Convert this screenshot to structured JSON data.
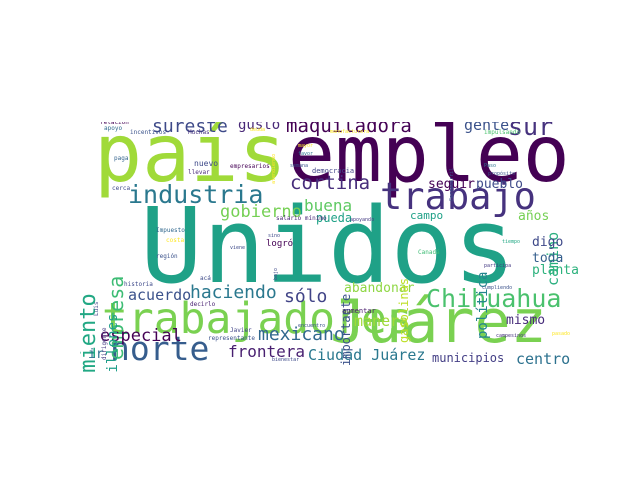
{
  "words": [
    {
      "text": "Unidos",
      "color": "#1fa187"
    },
    {
      "text": "empleo",
      "color": "#440154"
    },
    {
      "text": "país",
      "color": "#a0da39"
    },
    {
      "text": "Juárez",
      "color": "#7ad151"
    },
    {
      "text": "trabajadores",
      "color": "#7ad151"
    },
    {
      "text": "norte",
      "color": "#365d8d"
    },
    {
      "text": "trabajo",
      "color": "#46327e"
    },
    {
      "text": "Chihuahua",
      "color": "#4ac16d"
    },
    {
      "text": "industria",
      "color": "#2a788e"
    },
    {
      "text": "crecimiento",
      "color": "#22a884"
    },
    {
      "text": "empresa",
      "color": "#3dbc74"
    },
    {
      "text": "maquiladora",
      "color": "#440154"
    },
    {
      "text": "sur",
      "color": "#46327e"
    },
    {
      "text": "sureste",
      "color": "#3e4a89"
    },
    {
      "text": "cortina",
      "color": "#472d7b"
    },
    {
      "text": "gobierno",
      "color": "#75d054"
    },
    {
      "text": "buena",
      "color": "#5ec962"
    },
    {
      "text": "haciendo",
      "color": "#2a788e"
    },
    {
      "text": "sólo",
      "color": "#414487"
    },
    {
      "text": "mexicano",
      "color": "#31688e"
    },
    {
      "text": "especial",
      "color": "#440154"
    },
    {
      "text": "frontera",
      "color": "#481f70"
    },
    {
      "text": "Ciudad Juárez",
      "color": "#2a788e"
    },
    {
      "text": "acuerdo",
      "color": "#3b528b"
    },
    {
      "text": "gente",
      "color": "#3b528b"
    },
    {
      "text": "camino",
      "color": "#29af7f"
    },
    {
      "text": "gusto",
      "color": "#482878"
    },
    {
      "text": "manera",
      "color": "#a0da39"
    },
    {
      "text": "abandonar",
      "color": "#8fd744"
    },
    {
      "text": "importante",
      "color": "#3b528b"
    },
    {
      "text": "millones",
      "color": "#1f9e89"
    },
    {
      "text": "política",
      "color": "#24868e"
    },
    {
      "text": "pueblo",
      "color": "#3e4a89"
    },
    {
      "text": "seguir",
      "color": "#440154"
    },
    {
      "text": "pueda",
      "color": "#1fa187"
    },
    {
      "text": "años",
      "color": "#75d054"
    },
    {
      "text": "digo",
      "color": "#3e4989"
    },
    {
      "text": "toda",
      "color": "#355f8d"
    },
    {
      "text": "planta",
      "color": "#2db27d"
    },
    {
      "text": "mismo",
      "color": "#472c7a"
    },
    {
      "text": "centro",
      "color": "#2c718e"
    },
    {
      "text": "municipios",
      "color": "#433e85"
    },
    {
      "text": "campo",
      "color": "#1fa187"
    },
    {
      "text": "gasolinas",
      "color": "#bddf26"
    },
    {
      "text": "ir",
      "color": "#2d708e"
    },
    {
      "text": "logró",
      "color": "#440154"
    },
    {
      "text": "nuevo",
      "color": "#3e4a89"
    },
    {
      "text": "democracia",
      "color": "#414487"
    },
    {
      "text": "empresarios",
      "color": "#440154"
    },
    {
      "text": "salario mínimo",
      "color": "#482475"
    },
    {
      "text": "aumentar",
      "color": "#481a6c"
    },
    {
      "text": "representante",
      "color": "#3b528b"
    },
    {
      "text": "relación",
      "color": "#440154"
    },
    {
      "text": "apoyo",
      "color": "#30698e"
    },
    {
      "text": "incentivos",
      "color": "#3a538b"
    },
    {
      "text": "Muchas",
      "color": "#46327e"
    },
    {
      "text": "paga",
      "color": "#33638d"
    },
    {
      "text": "llevar",
      "color": "#482878"
    },
    {
      "text": "cerca",
      "color": "#3e4989"
    },
    {
      "text": "Impuesto",
      "color": "#31688e"
    },
    {
      "text": "costa",
      "color": "#fde725"
    },
    {
      "text": "región",
      "color": "#3b528b"
    },
    {
      "text": "historia",
      "color": "#3e4989"
    },
    {
      "text": "dirigente",
      "color": "#443983"
    },
    {
      "text": "Luis",
      "color": "#404688"
    },
    {
      "text": "decirlo",
      "color": "#482071"
    },
    {
      "text": "Javier",
      "color": "#414487"
    },
    {
      "text": "bienestar",
      "color": "#3e4a89"
    },
    {
      "text": "Canadá",
      "color": "#3dbc74"
    },
    {
      "text": "tiempo",
      "color": "#22a884"
    },
    {
      "text": "participa",
      "color": "#443a83"
    },
    {
      "text": "cumpliendo",
      "color": "#3b528b"
    },
    {
      "text": "campesinos",
      "color": "#46327e"
    },
    {
      "text": "pasado",
      "color": "#fde725"
    },
    {
      "text": "Paso",
      "color": "#2c728e"
    },
    {
      "text": "propósito",
      "color": "#3b528b"
    },
    {
      "text": "Ferrocarril",
      "color": "#3b528b"
    },
    {
      "text": "impulsando",
      "color": "#4ac16d"
    },
    {
      "text": "manufacturera",
      "color": "#fde725"
    },
    {
      "text": "deuda",
      "color": "#fde725"
    },
    {
      "text": "mayor",
      "color": "#fde725"
    },
    {
      "text": "favor",
      "color": "#2c728e"
    },
    {
      "text": "semana",
      "color": "#3a548c"
    },
    {
      "text": "apoyando",
      "color": "#443a83"
    },
    {
      "text": "sino",
      "color": "#3e4a89"
    },
    {
      "text": "viene",
      "color": "#3e4a89"
    },
    {
      "text": "acá",
      "color": "#3e4a89"
    },
    {
      "text": "bajo",
      "color": "#3e4a89"
    },
    {
      "text": "encuentro",
      "color": "#3b528b"
    },
    {
      "text": "atendiendo",
      "color": "#fde725"
    }
  ]
}
